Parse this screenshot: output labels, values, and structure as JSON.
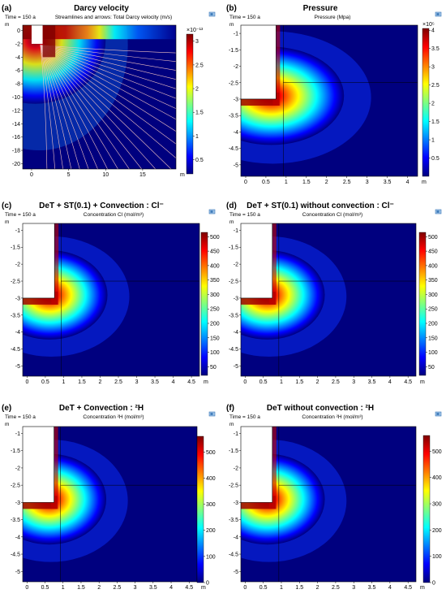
{
  "colors": {
    "jet": [
      "#00007f",
      "#0000ff",
      "#007fff",
      "#00ffff",
      "#7fff7f",
      "#ffff00",
      "#ff7f00",
      "#ff0000",
      "#7f0000"
    ],
    "streamline": "#f2c2c2",
    "background": "#ffffff"
  },
  "icons": {
    "toolbar": "comsol-view-icon"
  },
  "chart_data": [
    {
      "type": "heatmap",
      "letter": "(a)",
      "title": "Darcy velocity",
      "time_label": "Time = 150 a",
      "subtitle": "Streamlines and arrows: Total Darcy velocity (m/s)",
      "unit_label": "m",
      "xlim": [
        -1.2,
        19.5
      ],
      "ylim": [
        -20.8,
        0.8
      ],
      "x_ticks": [
        "0",
        "5",
        "10",
        "15"
      ],
      "x_tick_values": [
        0,
        5,
        10,
        15
      ],
      "y_ticks": [
        "0",
        "-2",
        "-4",
        "-6",
        "-8",
        "-10",
        "-12",
        "-14",
        "-16",
        "-18",
        "-20"
      ],
      "y_tick_values": [
        0,
        -2,
        -4,
        -6,
        -8,
        -10,
        -12,
        -14,
        -16,
        -18,
        -20
      ],
      "x_end_label": "m",
      "colorbar": {
        "range": [
          0.2,
          3.15
        ],
        "ticks": [
          "3",
          "2.5",
          "2",
          "1.5",
          "1",
          "0.5"
        ],
        "tick_values": [
          3,
          2.5,
          2,
          1.5,
          1,
          0.5
        ],
        "exponent": "×10⁻¹³"
      },
      "source": {
        "x": 0,
        "y": -2,
        "w": 1.5,
        "h": 3
      }
    },
    {
      "type": "heatmap",
      "letter": "(b)",
      "title": "Pressure",
      "time_label": "Time = 150 a",
      "subtitle": "Pressure (Mpa)",
      "unit_label": "m",
      "xlim": [
        -0.12,
        4.25
      ],
      "ylim": [
        -5.35,
        -0.75
      ],
      "x_ticks": [
        "0",
        "0.5",
        "1",
        "1.5",
        "2",
        "2.5",
        "3",
        "3.5",
        "4"
      ],
      "x_tick_values": [
        0,
        0.5,
        1,
        1.5,
        2,
        2.5,
        3,
        3.5,
        4
      ],
      "y_ticks": [
        "-1",
        "-1.5",
        "-2",
        "-2.5",
        "-3",
        "-3.5",
        "-4",
        "-4.5",
        "-5"
      ],
      "y_tick_values": [
        -1,
        -1.5,
        -2,
        -2.5,
        -3,
        -3.5,
        -4,
        -4.5,
        -5
      ],
      "x_end_label": "m",
      "colorbar": {
        "range": [
          0,
          4.05
        ],
        "ticks": [
          "4",
          "3.5",
          "3",
          "2.5",
          "2",
          "1.5",
          "1",
          "0.5"
        ],
        "tick_values": [
          4,
          3.5,
          3,
          2.5,
          2,
          1.5,
          1,
          0.5
        ],
        "exponent": "×10⁵"
      },
      "source": {
        "x": 0,
        "y": -3.0,
        "w": 0.75,
        "h": 2.25
      }
    },
    {
      "type": "heatmap",
      "letter": "(c)",
      "title": "DeT + ST(0.1) + Convection  : Cl⁻",
      "time_label": "Time = 150 a",
      "subtitle": "Concentration Cl (mol/m³)",
      "unit_label": "m",
      "xlim": [
        -0.12,
        4.72
      ],
      "ylim": [
        -5.3,
        -0.8
      ],
      "x_ticks": [
        "0",
        "0.5",
        "1",
        "1.5",
        "2",
        "2.5",
        "3",
        "3.5",
        "4",
        "4.5"
      ],
      "x_tick_values": [
        0,
        0.5,
        1,
        1.5,
        2,
        2.5,
        3,
        3.5,
        4,
        4.5
      ],
      "y_ticks": [
        "-1",
        "-1.5",
        "-2",
        "-2.5",
        "-3",
        "-3.5",
        "-4",
        "-4.5",
        "-5"
      ],
      "y_tick_values": [
        -1,
        -1.5,
        -2,
        -2.5,
        -3,
        -3.5,
        -4,
        -4.5,
        -5
      ],
      "x_end_label": "m",
      "colorbar": {
        "range": [
          20,
          515
        ],
        "ticks": [
          "500",
          "450",
          "400",
          "350",
          "300",
          "250",
          "200",
          "150",
          "100",
          "50"
        ],
        "tick_values": [
          500,
          450,
          400,
          350,
          300,
          250,
          200,
          150,
          100,
          50
        ]
      },
      "source": {
        "x": 0,
        "y": -3.0,
        "w": 0.75,
        "h": 2.2
      }
    },
    {
      "type": "heatmap",
      "letter": "(d)",
      "title": "DeT + ST(0.1) without convection  : Cl⁻",
      "time_label": "Time = 150 a",
      "subtitle": "Concentration Cl (mol/m³)",
      "unit_label": "m",
      "xlim": [
        -0.12,
        4.72
      ],
      "ylim": [
        -5.3,
        -0.8
      ],
      "x_ticks": [
        "0",
        "0.5",
        "1",
        "1.5",
        "2",
        "2.5",
        "3",
        "3.5",
        "4",
        "4.5"
      ],
      "x_tick_values": [
        0,
        0.5,
        1,
        1.5,
        2,
        2.5,
        3,
        3.5,
        4,
        4.5
      ],
      "y_ticks": [
        "-1",
        "-1.5",
        "-2",
        "-2.5",
        "-3",
        "-3.5",
        "-4",
        "-4.5",
        "-5"
      ],
      "y_tick_values": [
        -1,
        -1.5,
        -2,
        -2.5,
        -3,
        -3.5,
        -4,
        -4.5,
        -5
      ],
      "x_end_label": "m",
      "colorbar": {
        "range": [
          20,
          515
        ],
        "ticks": [
          "500",
          "450",
          "400",
          "350",
          "300",
          "250",
          "200",
          "150",
          "100",
          "50"
        ],
        "tick_values": [
          500,
          450,
          400,
          350,
          300,
          250,
          200,
          150,
          100,
          50
        ]
      },
      "source": {
        "x": 0,
        "y": -3.0,
        "w": 0.75,
        "h": 2.2
      }
    },
    {
      "type": "heatmap",
      "letter": "(e)",
      "title": "DeT + Convection  : ²H",
      "time_label": "Time = 150 a",
      "subtitle": "Concentration ²H (mol/m³)",
      "unit_label": "m",
      "xlim": [
        -0.12,
        4.72
      ],
      "ylim": [
        -5.3,
        -0.8
      ],
      "x_ticks": [
        "0",
        "0.5",
        "1",
        "1.5",
        "2",
        "2.5",
        "3",
        "3.5",
        "4",
        "4.5"
      ],
      "x_tick_values": [
        0,
        0.5,
        1,
        1.5,
        2,
        2.5,
        3,
        3.5,
        4,
        4.5
      ],
      "y_ticks": [
        "-1",
        "-1.5",
        "-2",
        "-2.5",
        "-3",
        "-3.5",
        "-4",
        "-4.5",
        "-5"
      ],
      "y_tick_values": [
        -1,
        -1.5,
        -2,
        -2.5,
        -3,
        -3.5,
        -4,
        -4.5,
        -5
      ],
      "x_end_label": "m",
      "colorbar": {
        "range": [
          0,
          560
        ],
        "ticks": [
          "500",
          "400",
          "300",
          "200",
          "100",
          "0"
        ],
        "tick_values": [
          500,
          400,
          300,
          200,
          100,
          0
        ]
      },
      "source": {
        "x": 0,
        "y": -3.0,
        "w": 0.75,
        "h": 2.2
      }
    },
    {
      "type": "heatmap",
      "letter": "(f)",
      "title": "DeT  without convection  : ²H",
      "time_label": "Time = 150 a",
      "subtitle": "Concentration ²H (mol/m³)",
      "unit_label": "m",
      "xlim": [
        -0.12,
        4.72
      ],
      "ylim": [
        -5.3,
        -0.8
      ],
      "x_ticks": [
        "0",
        "0.5",
        "1",
        "1.5",
        "2",
        "2.5",
        "3",
        "3.5",
        "4",
        "4.5"
      ],
      "x_tick_values": [
        0,
        0.5,
        1,
        1.5,
        2,
        2.5,
        3,
        3.5,
        4,
        4.5
      ],
      "y_ticks": [
        "-1",
        "-1.5",
        "-2",
        "-2.5",
        "-3",
        "-3.5",
        "-4",
        "-4.5",
        "-5"
      ],
      "y_tick_values": [
        -1,
        -1.5,
        -2,
        -2.5,
        -3,
        -3.5,
        -4,
        -4.5,
        -5
      ],
      "x_end_label": "m",
      "colorbar": {
        "range": [
          0,
          560
        ],
        "ticks": [
          "500",
          "400",
          "300",
          "200",
          "100",
          "0"
        ],
        "tick_values": [
          500,
          400,
          300,
          200,
          100,
          0
        ]
      },
      "source": {
        "x": 0,
        "y": -3.0,
        "w": 0.75,
        "h": 2.2
      }
    }
  ]
}
